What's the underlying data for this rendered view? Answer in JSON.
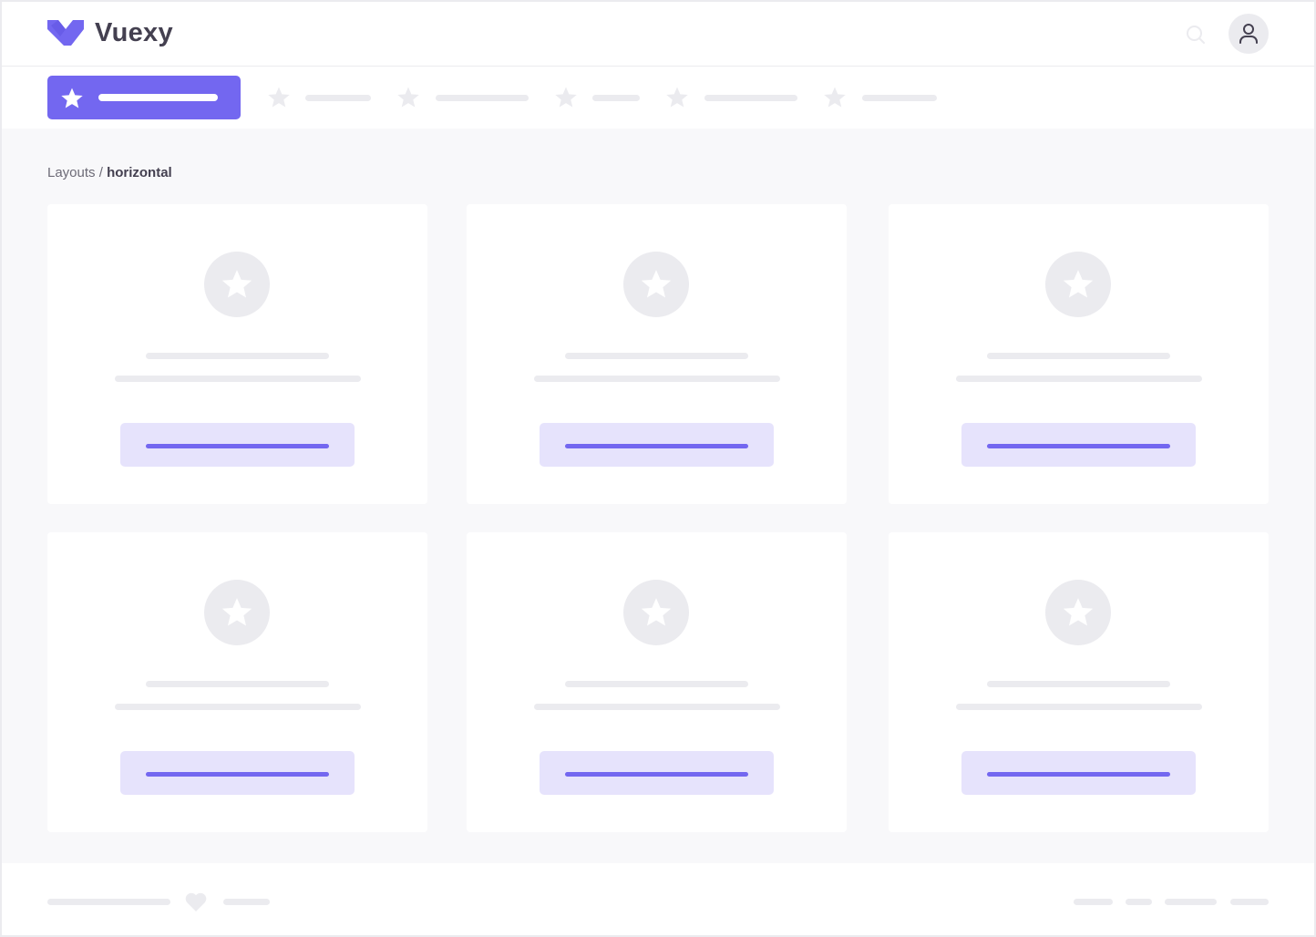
{
  "header": {
    "brand": "Vuexy",
    "icons": [
      "logo-icon",
      "search-icon",
      "user-icon"
    ]
  },
  "nav": {
    "active_index": 0,
    "item_count": 6,
    "accent": "#7367f0"
  },
  "breadcrumb": {
    "parent": "Layouts",
    "separator": " / ",
    "current": "horizontal"
  },
  "cards": [
    {},
    {},
    {},
    {},
    {},
    {}
  ],
  "colors": {
    "accent": "#7367f0",
    "accent_light": "#e6e3fc",
    "placeholder": "#ebebef",
    "background": "#f8f8fa",
    "text": "#444050"
  }
}
